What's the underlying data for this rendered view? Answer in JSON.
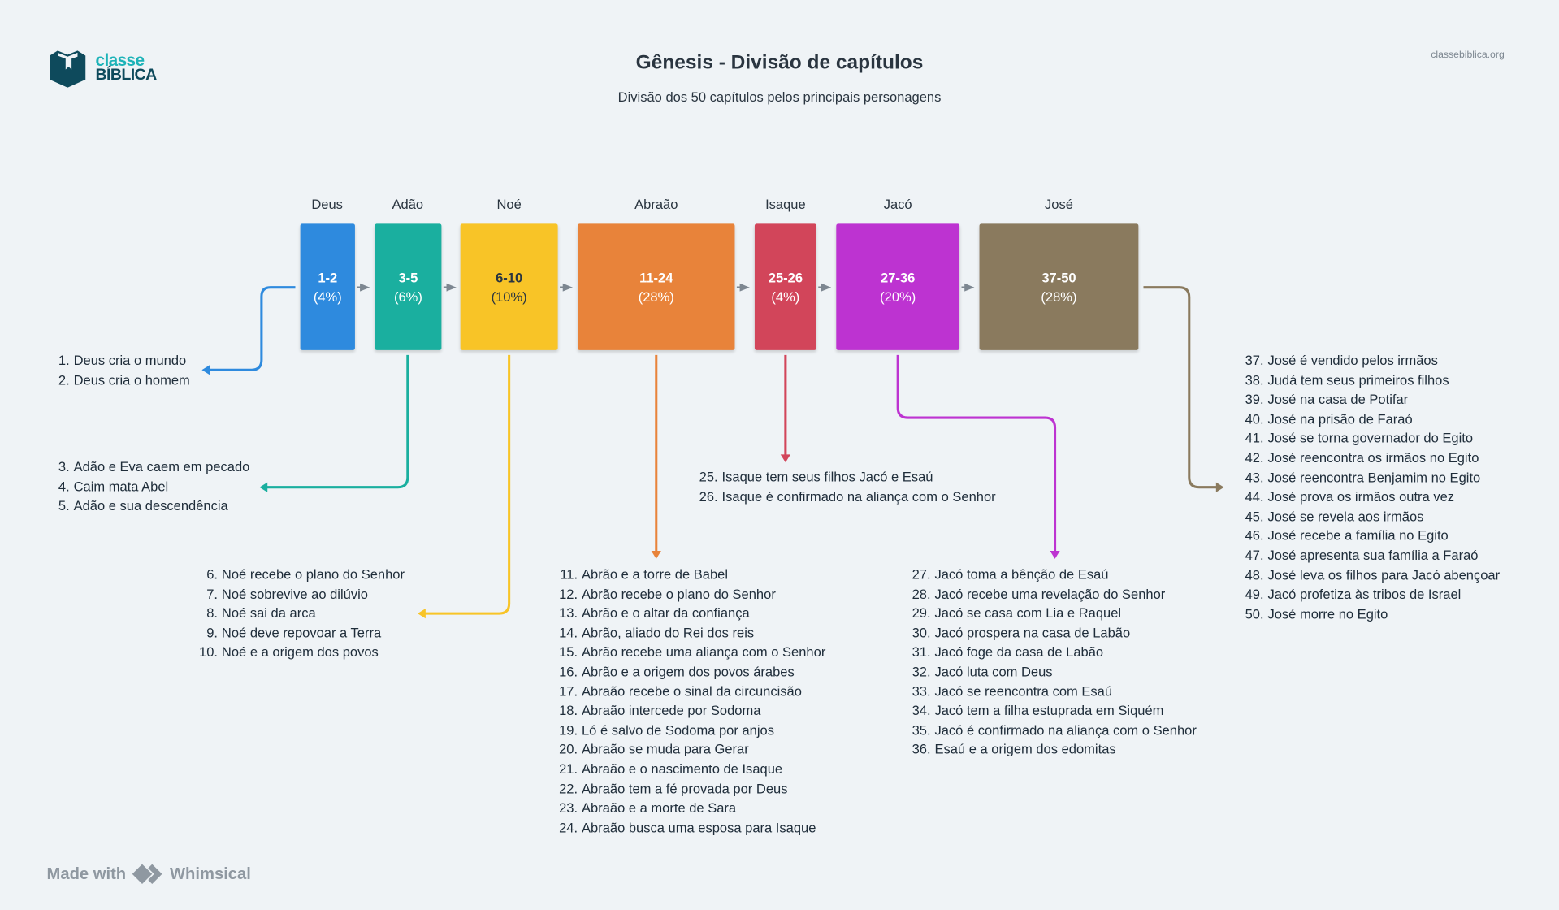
{
  "header": {
    "title": "Gênesis - Divisão de capítulos",
    "subtitle": "Divisão dos 50 capítulos pelos principais personagens",
    "site": "classebiblica.org",
    "logo": {
      "line1": "classe",
      "line2": "BÍBLICA",
      "icon": "book-icon"
    }
  },
  "sections": [
    {
      "name": "Deus",
      "range": "1-2",
      "percent": "(4%)",
      "color": "#2e8ade",
      "items": [
        {
          "n": "1.",
          "t": "Deus cria o mundo"
        },
        {
          "n": "2.",
          "t": "Deus cria o homem"
        }
      ]
    },
    {
      "name": "Adão",
      "range": "3-5",
      "percent": "(6%)",
      "color": "#1aaf9f",
      "items": [
        {
          "n": "3.",
          "t": "Adão e Eva caem em pecado"
        },
        {
          "n": "4.",
          "t": "Caim mata Abel"
        },
        {
          "n": "5.",
          "t": "Adão e sua descendência"
        }
      ]
    },
    {
      "name": "Noé",
      "range": "6-10",
      "percent": "(10%)",
      "color": "#f8c427",
      "items": [
        {
          "n": "6.",
          "t": "Noé recebe o plano do Senhor"
        },
        {
          "n": "7.",
          "t": "Noé sobrevive ao dilúvio"
        },
        {
          "n": "8.",
          "t": "Noé sai da arca"
        },
        {
          "n": "9.",
          "t": "Noé deve repovoar a Terra"
        },
        {
          "n": "10.",
          "t": "Noé e a origem dos povos"
        }
      ]
    },
    {
      "name": "Abraão",
      "range": "11-24",
      "percent": "(28%)",
      "color": "#e8833a",
      "items": [
        {
          "n": "11.",
          "t": "Abrão e a torre de Babel"
        },
        {
          "n": "12.",
          "t": "Abrão recebe o plano do Senhor"
        },
        {
          "n": "13.",
          "t": "Abrão e o altar da confiança"
        },
        {
          "n": "14.",
          "t": "Abrão, aliado do Rei dos reis"
        },
        {
          "n": "15.",
          "t": "Abrão recebe uma aliança com o Senhor"
        },
        {
          "n": "16.",
          "t": "Abrão e a origem dos povos árabes"
        },
        {
          "n": "17.",
          "t": "Abraão recebe o sinal da circuncisão"
        },
        {
          "n": "18.",
          "t": "Abraão intercede por Sodoma"
        },
        {
          "n": "19.",
          "t": "Ló é salvo de Sodoma por anjos"
        },
        {
          "n": "20.",
          "t": "Abraão se muda para Gerar"
        },
        {
          "n": "21.",
          "t": "Abraão e o nascimento de Isaque"
        },
        {
          "n": "22.",
          "t": "Abraão tem a fé provada por Deus"
        },
        {
          "n": "23.",
          "t": "Abraão e a morte de Sara"
        },
        {
          "n": "24.",
          "t": "Abraão busca uma esposa para Isaque"
        }
      ]
    },
    {
      "name": "Isaque",
      "range": "25-26",
      "percent": "(4%)",
      "color": "#d2455a",
      "items": [
        {
          "n": "25.",
          "t": "Isaque tem seus filhos Jacó e Esaú"
        },
        {
          "n": "26.",
          "t": "Isaque é confirmado na aliança com o Senhor"
        }
      ]
    },
    {
      "name": "Jacó",
      "range": "27-36",
      "percent": "(20%)",
      "color": "#bd33d1",
      "items": [
        {
          "n": "27.",
          "t": "Jacó toma a bênção de Esaú"
        },
        {
          "n": "28.",
          "t": "Jacó recebe uma revelação do Senhor"
        },
        {
          "n": "29.",
          "t": "Jacó se casa com Lia e Raquel"
        },
        {
          "n": "30.",
          "t": "Jacó prospera na casa de Labão"
        },
        {
          "n": "31.",
          "t": "Jacó foge da casa de Labão"
        },
        {
          "n": "32.",
          "t": "Jacó luta com Deus"
        },
        {
          "n": "33.",
          "t": "Jacó se reencontra com Esaú"
        },
        {
          "n": "34.",
          "t": "Jacó tem a filha estuprada em Siquém"
        },
        {
          "n": "35.",
          "t": "Jacó é confirmado na aliança com o Senhor"
        },
        {
          "n": "36.",
          "t": "Esaú e a origem dos edomitas"
        }
      ]
    },
    {
      "name": "José",
      "range": "37-50",
      "percent": "(28%)",
      "color": "#8a7a5e",
      "items": [
        {
          "n": "37.",
          "t": "José é vendido pelos irmãos"
        },
        {
          "n": "38.",
          "t": "Judá tem seus primeiros filhos"
        },
        {
          "n": "39.",
          "t": "José na casa de Potifar"
        },
        {
          "n": "40.",
          "t": "José na prisão de Faraó"
        },
        {
          "n": "41.",
          "t": "José se torna governador do Egito"
        },
        {
          "n": "42.",
          "t": "José reencontra os irmãos no Egito"
        },
        {
          "n": "43.",
          "t": "José reencontra Benjamim no Egito"
        },
        {
          "n": "44.",
          "t": "José prova os irmãos outra vez"
        },
        {
          "n": "45.",
          "t": "José se revela aos irmãos"
        },
        {
          "n": "46.",
          "t": "José recebe a família no Egito"
        },
        {
          "n": "47.",
          "t": "José apresenta sua família a Faraó"
        },
        {
          "n": "48.",
          "t": "José leva os filhos para Jacó abençoar"
        },
        {
          "n": "49.",
          "t": "Jacó profetiza às tribos de Israel"
        },
        {
          "n": "50.",
          "t": "José morre no Egito"
        }
      ]
    }
  ],
  "footer": {
    "made_with": "Made with",
    "brand": "Whimsical"
  }
}
